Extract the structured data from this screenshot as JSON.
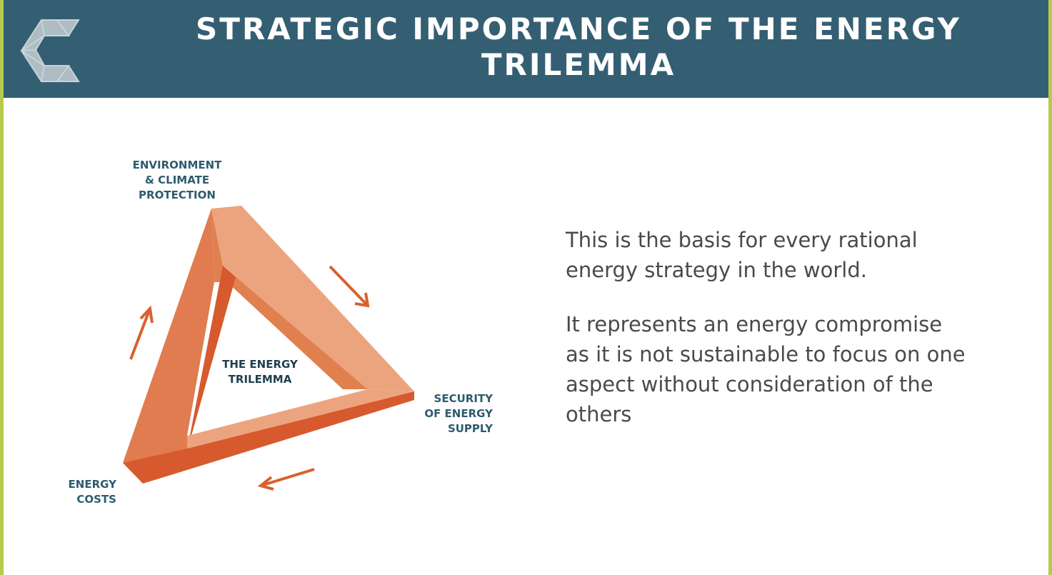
{
  "header": {
    "title_lines": [
      "STRATEGIC IMPORTANCE OF THE ENERGY",
      "TRILEMMA"
    ]
  },
  "diagram": {
    "center_lines": [
      "THE ENERGY",
      "TRILEMMA"
    ],
    "top_label_lines": [
      "ENVIRONMENT",
      "& CLIMATE",
      "PROTECTION"
    ],
    "right_label_lines": [
      "SECURITY",
      "OF ENERGY",
      "SUPPLY"
    ],
    "left_label_lines": [
      "ENERGY",
      "COSTS"
    ]
  },
  "body": {
    "paragraphs": [
      [
        "This is the basis for every rational",
        "energy strategy in the world."
      ],
      [
        "It represents an energy compromise",
        "as it is not sustainable to focus on one",
        "aspect without consideration of the",
        "others"
      ]
    ]
  }
}
